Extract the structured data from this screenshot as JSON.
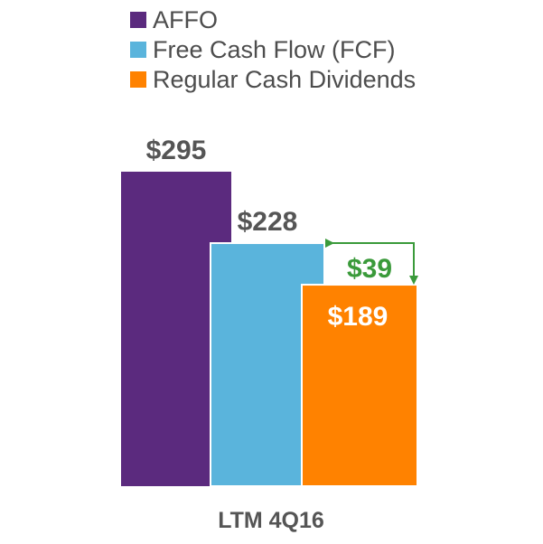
{
  "chart_data": {
    "type": "bar",
    "categories": [
      "LTM 4Q16"
    ],
    "series": [
      {
        "name": "AFFO",
        "values": [
          295
        ],
        "color": "#5b2a7e",
        "value_label": "$295",
        "label_color": "#555555",
        "label_position": "above"
      },
      {
        "name": "Free Cash Flow (FCF)",
        "values": [
          228
        ],
        "color": "#5ab4dc",
        "value_label": "$228",
        "label_color": "#555555",
        "label_position": "above"
      },
      {
        "name": "Regular Cash Dividends",
        "values": [
          189
        ],
        "color": "#ff8200",
        "value_label": "$189",
        "label_color": "#ffffff",
        "label_position": "inside"
      }
    ],
    "annotation": {
      "text": "$39",
      "value": 39,
      "between": [
        "Free Cash Flow (FCF)",
        "Regular Cash Dividends"
      ],
      "color": "#3a9a3a"
    },
    "legend": {
      "placement": "top-left"
    },
    "grid": false,
    "ylim": [
      0,
      295
    ]
  }
}
